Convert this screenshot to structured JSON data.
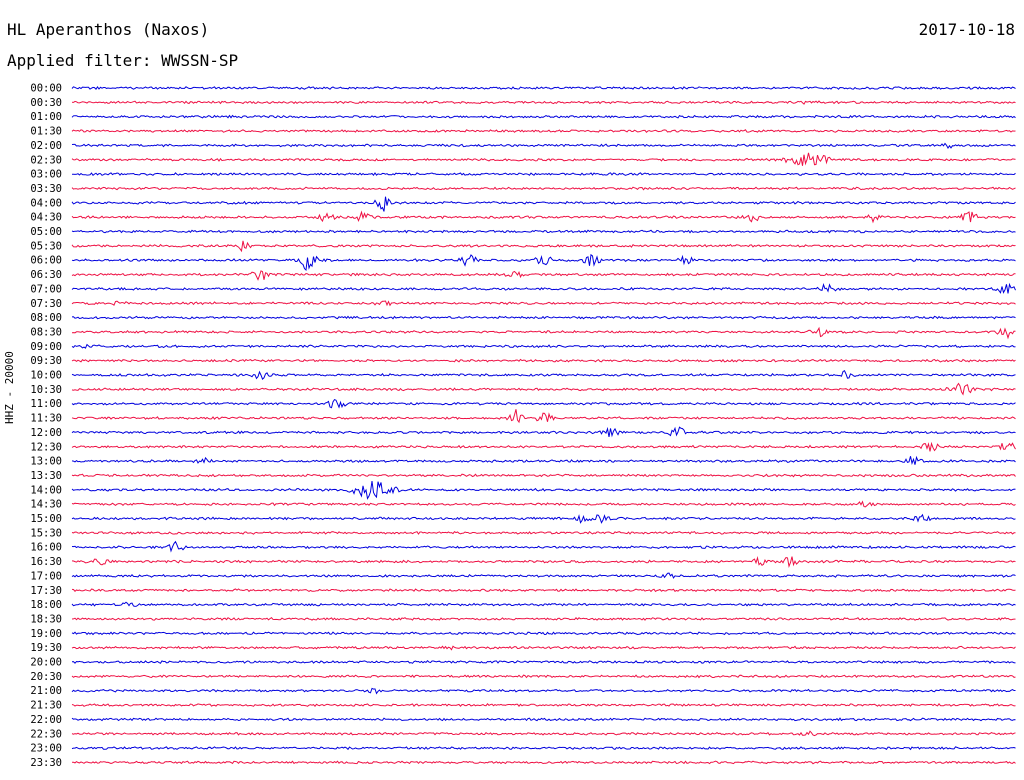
{
  "header": {
    "station": "HL Aperanthos (Naxos)",
    "date": "2017-10-18",
    "filter": "Applied filter: WWSSN-SP"
  },
  "chart_data": {
    "type": "line",
    "ylabel": "HHZ - 20000",
    "row_labels": [
      "00:00",
      "00:30",
      "01:00",
      "01:30",
      "02:00",
      "02:30",
      "03:00",
      "03:30",
      "04:00",
      "04:30",
      "05:00",
      "05:30",
      "06:00",
      "06:30",
      "07:00",
      "07:30",
      "08:00",
      "08:30",
      "09:00",
      "09:30",
      "10:00",
      "10:30",
      "11:00",
      "11:30",
      "12:00",
      "12:30",
      "13:00",
      "13:30",
      "14:00",
      "14:30",
      "15:00",
      "15:30",
      "16:00",
      "16:30",
      "17:00",
      "17:30",
      "18:00",
      "18:30",
      "19:00",
      "19:30",
      "20:00",
      "20:30",
      "21:00",
      "21:30",
      "22:00",
      "22:30",
      "23:00",
      "23:30"
    ],
    "colors": [
      "#0000dd",
      "#ee1144"
    ],
    "events": [
      {
        "row": 1,
        "pos": 0.78,
        "amp": 2
      },
      {
        "row": 4,
        "pos": 0.93,
        "amp": 3
      },
      {
        "row": 5,
        "pos": 0.78,
        "amp": 7,
        "dur": 0.03
      },
      {
        "row": 8,
        "pos": 0.33,
        "amp": 8
      },
      {
        "row": 9,
        "pos": 0.27,
        "amp": 5
      },
      {
        "row": 9,
        "pos": 0.31,
        "amp": 6
      },
      {
        "row": 9,
        "pos": 0.72,
        "amp": 5
      },
      {
        "row": 9,
        "pos": 0.85,
        "amp": 4
      },
      {
        "row": 9,
        "pos": 0.95,
        "amp": 7
      },
      {
        "row": 11,
        "pos": 0.18,
        "amp": 5
      },
      {
        "row": 12,
        "pos": 0.25,
        "amp": 12
      },
      {
        "row": 12,
        "pos": 0.42,
        "amp": 6
      },
      {
        "row": 12,
        "pos": 0.5,
        "amp": 5
      },
      {
        "row": 12,
        "pos": 0.55,
        "amp": 6
      },
      {
        "row": 12,
        "pos": 0.65,
        "amp": 4
      },
      {
        "row": 13,
        "pos": 0.2,
        "amp": 6
      },
      {
        "row": 13,
        "pos": 0.47,
        "amp": 3
      },
      {
        "row": 14,
        "pos": 0.8,
        "amp": 5
      },
      {
        "row": 14,
        "pos": 0.99,
        "amp": 6
      },
      {
        "row": 15,
        "pos": 0.05,
        "amp": 3
      },
      {
        "row": 15,
        "pos": 0.33,
        "amp": 3
      },
      {
        "row": 17,
        "pos": 0.79,
        "amp": 7
      },
      {
        "row": 17,
        "pos": 0.99,
        "amp": 6
      },
      {
        "row": 18,
        "pos": 0.02,
        "amp": 3
      },
      {
        "row": 20,
        "pos": 0.2,
        "amp": 4
      },
      {
        "row": 20,
        "pos": 0.82,
        "amp": 4
      },
      {
        "row": 21,
        "pos": 0.94,
        "amp": 6,
        "dur": 0.02
      },
      {
        "row": 22,
        "pos": 0.28,
        "amp": 6
      },
      {
        "row": 23,
        "pos": 0.47,
        "amp": 9
      },
      {
        "row": 23,
        "pos": 0.5,
        "amp": 7
      },
      {
        "row": 24,
        "pos": 0.57,
        "amp": 5
      },
      {
        "row": 24,
        "pos": 0.64,
        "amp": 8
      },
      {
        "row": 25,
        "pos": 0.91,
        "amp": 6
      },
      {
        "row": 25,
        "pos": 0.99,
        "amp": 6
      },
      {
        "row": 26,
        "pos": 0.14,
        "amp": 3
      },
      {
        "row": 26,
        "pos": 0.89,
        "amp": 5
      },
      {
        "row": 28,
        "pos": 0.32,
        "amp": 10,
        "dur": 0.03
      },
      {
        "row": 29,
        "pos": 0.84,
        "amp": 3
      },
      {
        "row": 30,
        "pos": 0.54,
        "amp": 4
      },
      {
        "row": 30,
        "pos": 0.56,
        "amp": 4
      },
      {
        "row": 30,
        "pos": 0.9,
        "amp": 3
      },
      {
        "row": 32,
        "pos": 0.11,
        "amp": 5
      },
      {
        "row": 33,
        "pos": 0.03,
        "amp": 3
      },
      {
        "row": 33,
        "pos": 0.73,
        "amp": 6
      },
      {
        "row": 33,
        "pos": 0.76,
        "amp": 5
      },
      {
        "row": 34,
        "pos": 0.63,
        "amp": 3
      },
      {
        "row": 36,
        "pos": 0.06,
        "amp": 2
      },
      {
        "row": 39,
        "pos": 0.4,
        "amp": 2
      },
      {
        "row": 42,
        "pos": 0.32,
        "amp": 2
      },
      {
        "row": 45,
        "pos": 0.78,
        "amp": 2
      }
    ]
  }
}
